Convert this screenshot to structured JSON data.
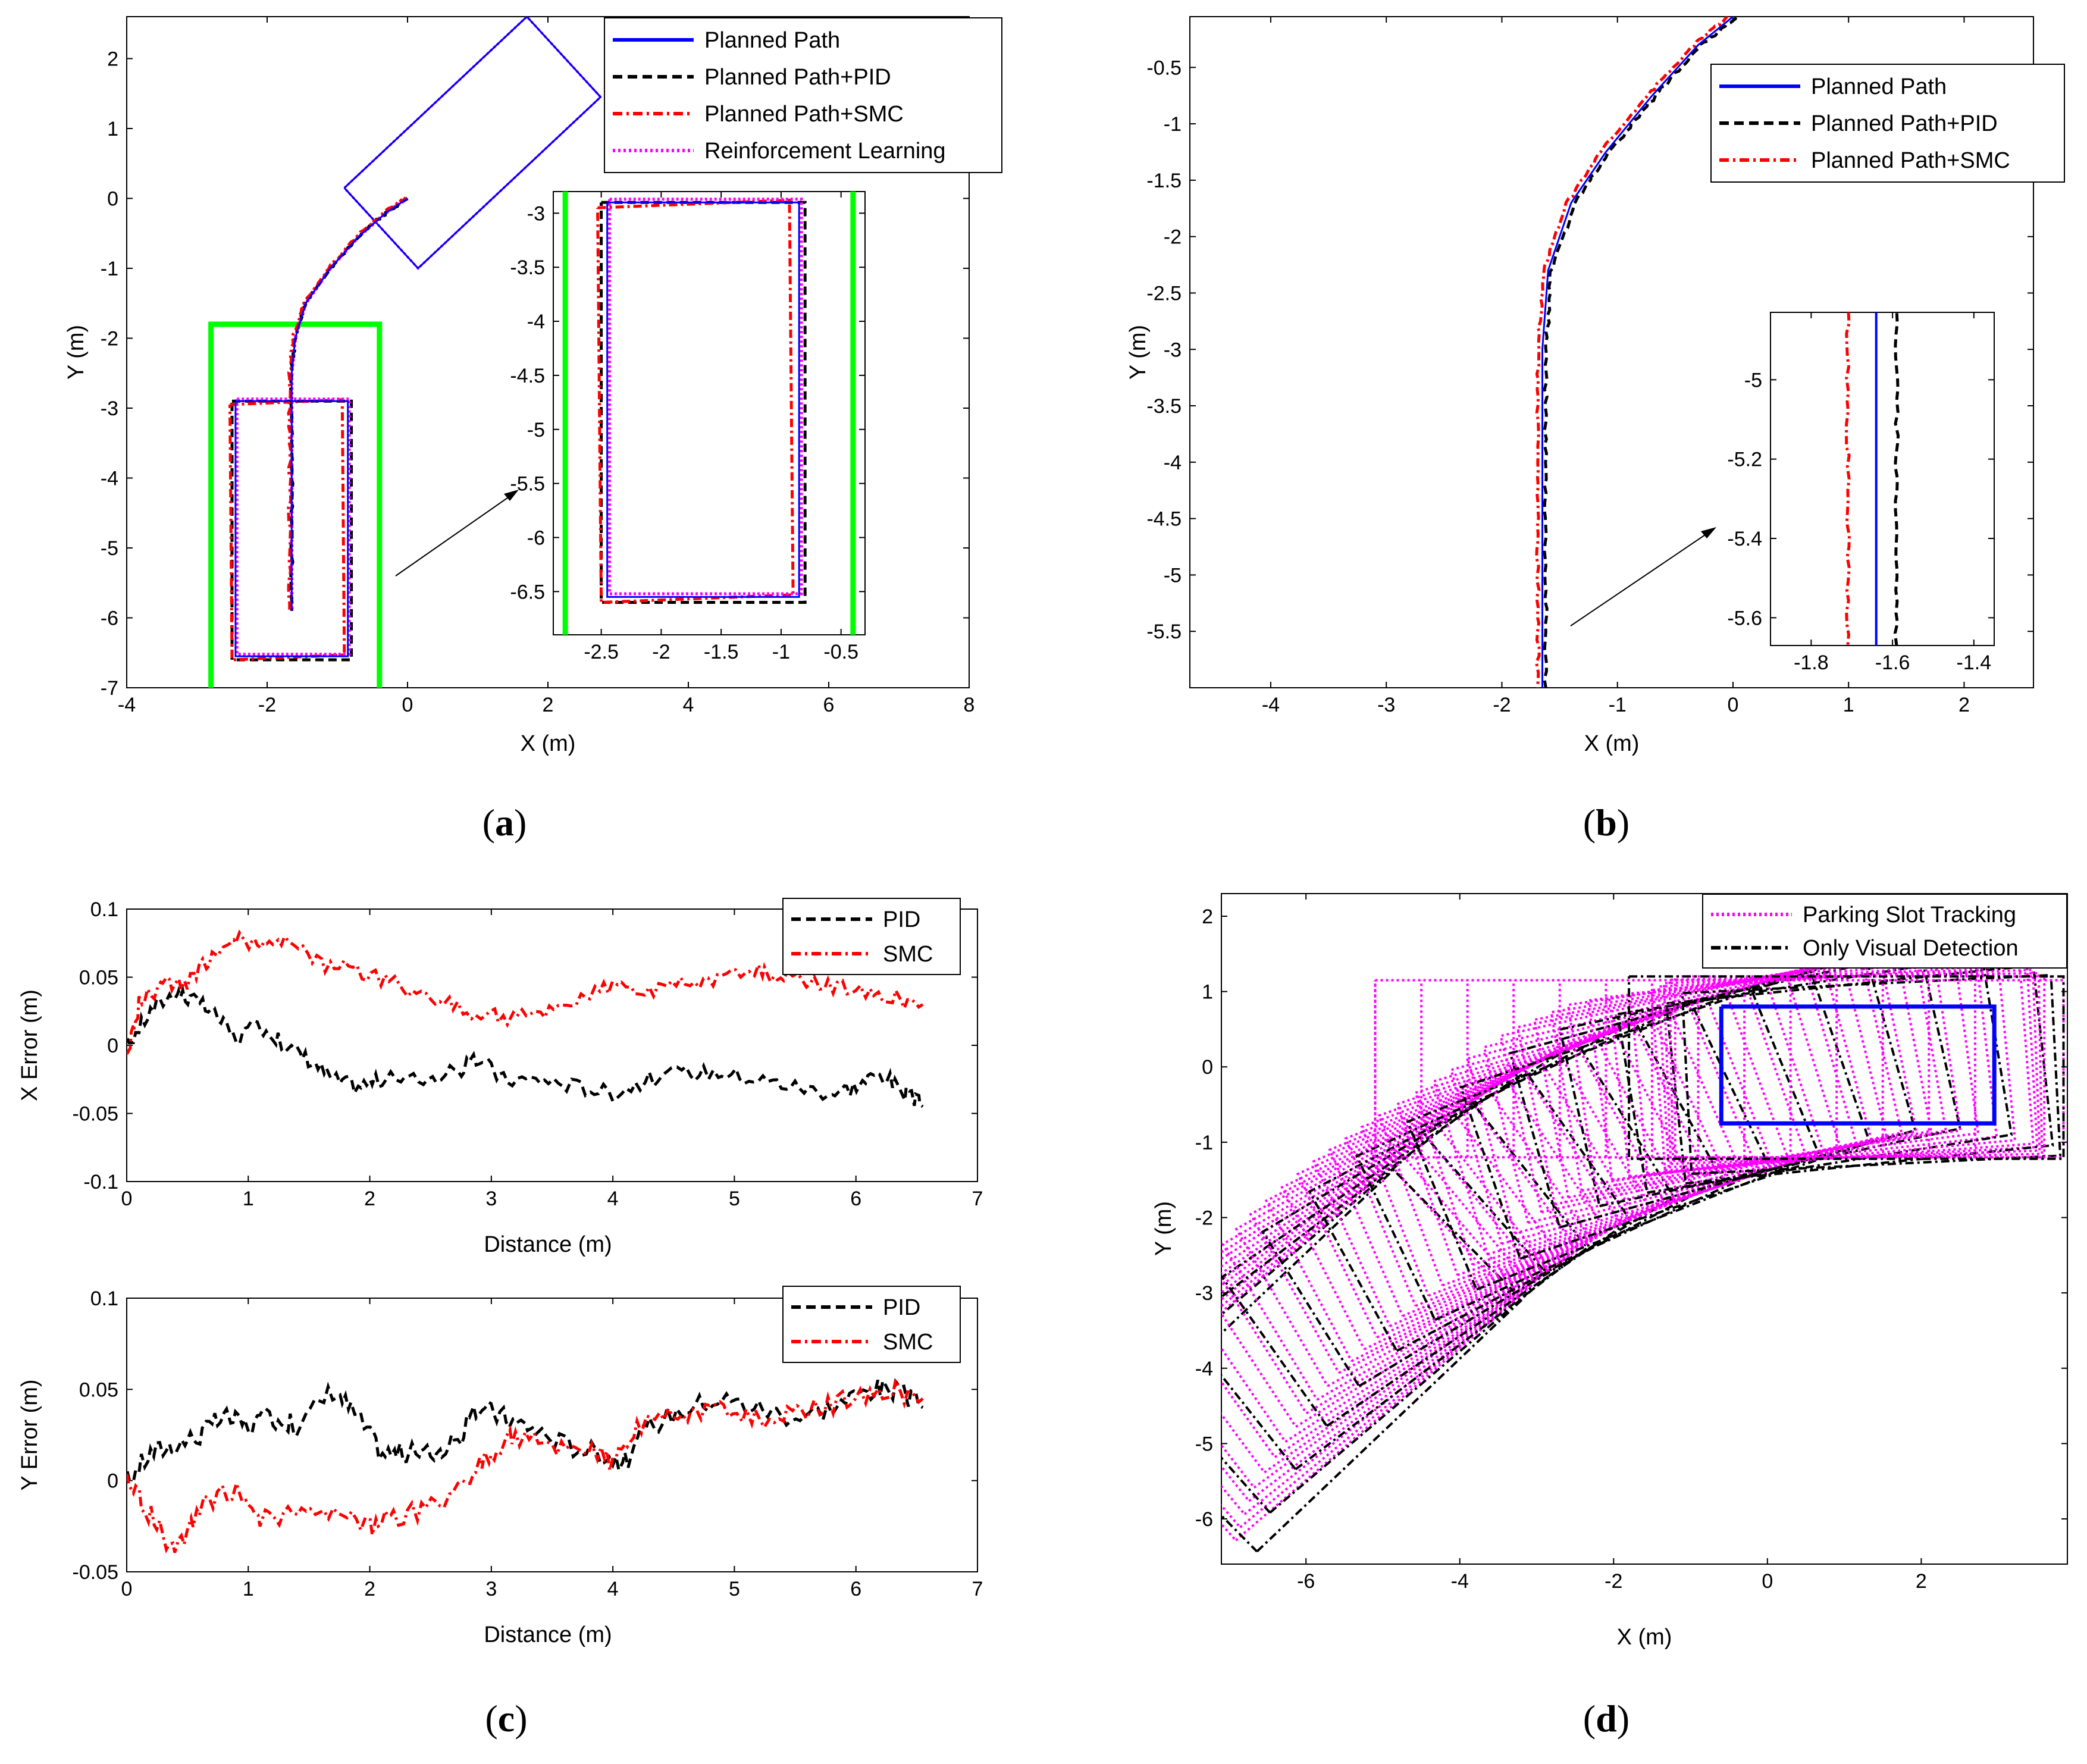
{
  "captions": {
    "a": "a",
    "b": "b",
    "c": "c",
    "d": "d"
  },
  "colors": {
    "blue": "#0000ff",
    "black": "#000000",
    "red": "#ff0000",
    "magenta": "#ff00ff",
    "green": "#00ff00"
  },
  "chart_data": [
    {
      "id": "a",
      "type": "line",
      "xlabel": "X (m)",
      "ylabel": "Y (m)",
      "xlim": [
        -4,
        8
      ],
      "ylim": [
        -7,
        2.6
      ],
      "xticks": [
        -4,
        -2,
        0,
        2,
        4,
        6,
        8
      ],
      "yticks": [
        -7,
        -6,
        -5,
        -4,
        -3,
        -2,
        -1,
        0,
        1,
        2
      ],
      "legend_position": "top-right",
      "series": [
        {
          "name": "Planned Path",
          "color": "#0000ff",
          "style": "solid"
        },
        {
          "name": "Planned Path+PID",
          "color": "#000000",
          "style": "dashed"
        },
        {
          "name": "Planned Path+SMC",
          "color": "#ff0000",
          "style": "dashdot"
        },
        {
          "name": "Reinforcement Learning",
          "color": "#ff00ff",
          "style": "dotted"
        }
      ],
      "path": [
        [
          0,
          0
        ],
        [
          -0.3,
          -0.2
        ],
        [
          -0.7,
          -0.55
        ],
        [
          -1.1,
          -1.0
        ],
        [
          -1.45,
          -1.5
        ],
        [
          -1.6,
          -2.0
        ],
        [
          -1.65,
          -2.5
        ],
        [
          -1.65,
          -3.5
        ],
        [
          -1.65,
          -4.5
        ],
        [
          -1.65,
          -5.9
        ]
      ],
      "start_box": [
        [
          -0.9,
          0.15
        ],
        [
          1.7,
          2.6
        ],
        [
          2.75,
          1.45
        ],
        [
          0.15,
          -1.0
        ]
      ],
      "final_box": [
        [
          -2.45,
          -2.9
        ],
        [
          -0.85,
          -2.9
        ],
        [
          -0.85,
          -6.55
        ],
        [
          -2.45,
          -6.55
        ]
      ],
      "slot_lines": {
        "left_x": -2.8,
        "right_x": -0.4,
        "top_y": -1.8,
        "bottom_y": -7
      },
      "inset": {
        "xlim": [
          -2.9,
          -0.3
        ],
        "ylim": [
          -6.9,
          -2.8
        ],
        "xticks": [
          -2.5,
          -2,
          -1.5,
          -1,
          -0.5
        ],
        "yticks": [
          -3,
          -3.5,
          -4,
          -4.5,
          -5,
          -5.5,
          -6,
          -6.5
        ],
        "slot_x": [
          -2.8,
          -0.4
        ]
      }
    },
    {
      "id": "b",
      "type": "line",
      "xlabel": "X (m)",
      "ylabel": "Y (m)",
      "xlim": [
        -4.7,
        2.6
      ],
      "ylim": [
        -6,
        -0.05
      ],
      "xticks": [
        -4,
        -3,
        -2,
        -1,
        0,
        1,
        2
      ],
      "yticks": [
        -0.5,
        -1,
        -1.5,
        -2,
        -2.5,
        -3,
        -3.5,
        -4,
        -4.5,
        -5,
        -5.5
      ],
      "legend_position": "top-right",
      "series": [
        {
          "name": "Planned Path",
          "color": "#0000ff",
          "style": "solid"
        },
        {
          "name": "Planned Path+PID",
          "color": "#000000",
          "style": "dashed"
        },
        {
          "name": "Planned Path+SMC",
          "color": "#ff0000",
          "style": "dashdot"
        }
      ],
      "path": [
        [
          0,
          -0.05
        ],
        [
          -0.3,
          -0.3
        ],
        [
          -0.7,
          -0.75
        ],
        [
          -1.1,
          -1.25
        ],
        [
          -1.4,
          -1.7
        ],
        [
          -1.6,
          -2.3
        ],
        [
          -1.65,
          -3.0
        ],
        [
          -1.65,
          -4.0
        ],
        [
          -1.65,
          -5.0
        ],
        [
          -1.65,
          -6.0
        ]
      ],
      "inset": {
        "xlim": [
          -1.9,
          -1.35
        ],
        "ylim": [
          -5.67,
          -4.83
        ],
        "xticks": [
          -1.8,
          -1.6,
          -1.4
        ],
        "yticks": [
          -5,
          -5.2,
          -5.4,
          -5.6
        ]
      }
    },
    {
      "id": "c1",
      "type": "line",
      "xlabel": "Distance (m)",
      "ylabel": "X Error (m)",
      "xlim": [
        0,
        7
      ],
      "ylim": [
        -0.1,
        0.1
      ],
      "xticks": [
        0,
        1,
        2,
        3,
        4,
        5,
        6,
        7
      ],
      "yticks": [
        -0.1,
        -0.05,
        0,
        0.05,
        0.1
      ],
      "legend_position": "top-right",
      "series": [
        {
          "name": "PID",
          "color": "#000000",
          "style": "dashed",
          "x": [
            0,
            0.2,
            0.4,
            0.5,
            0.7,
            0.9,
            1.1,
            1.3,
            1.5,
            1.7,
            1.9,
            2.1,
            2.4,
            2.7,
            2.9,
            3.1,
            3.4,
            3.7,
            4.0,
            4.3,
            4.6,
            4.9,
            5.2,
            5.5,
            5.8,
            6.0,
            6.2,
            6.4,
            6.55
          ],
          "y": [
            0.0,
            0.025,
            0.04,
            0.035,
            0.025,
            0.005,
            0.015,
            0.0,
            -0.01,
            -0.025,
            -0.03,
            -0.025,
            -0.025,
            -0.02,
            -0.01,
            -0.025,
            -0.025,
            -0.03,
            -0.035,
            -0.025,
            -0.02,
            -0.02,
            -0.025,
            -0.03,
            -0.035,
            -0.03,
            -0.02,
            -0.035,
            -0.045
          ]
        },
        {
          "name": "SMC",
          "color": "#ff0000",
          "style": "dashdot",
          "x": [
            0,
            0.1,
            0.3,
            0.5,
            0.7,
            0.9,
            1.1,
            1.3,
            1.6,
            1.9,
            2.2,
            2.5,
            2.8,
            3.1,
            3.4,
            3.7,
            4.0,
            4.3,
            4.6,
            4.9,
            5.2,
            5.4,
            5.7,
            6.0,
            6.3,
            6.55
          ],
          "y": [
            -0.01,
            0.03,
            0.045,
            0.045,
            0.065,
            0.08,
            0.07,
            0.075,
            0.06,
            0.055,
            0.045,
            0.035,
            0.025,
            0.02,
            0.025,
            0.035,
            0.045,
            0.04,
            0.045,
            0.05,
            0.055,
            0.05,
            0.045,
            0.04,
            0.035,
            0.03
          ]
        }
      ]
    },
    {
      "id": "c2",
      "type": "line",
      "xlabel": "Distance (m)",
      "ylabel": "Y Error (m)",
      "xlim": [
        0,
        7
      ],
      "ylim": [
        -0.05,
        0.1
      ],
      "xticks": [
        0,
        1,
        2,
        3,
        4,
        5,
        6,
        7
      ],
      "yticks": [
        -0.05,
        0,
        0.05,
        0.1
      ],
      "legend_position": "top-right",
      "series": [
        {
          "name": "PID",
          "color": "#000000",
          "style": "dashed",
          "x": [
            0,
            0.2,
            0.4,
            0.6,
            0.8,
            1.0,
            1.2,
            1.4,
            1.7,
            1.9,
            2.1,
            2.3,
            2.5,
            2.7,
            2.9,
            3.1,
            3.3,
            3.6,
            3.9,
            4.1,
            4.3,
            4.6,
            4.9,
            5.2,
            5.5,
            5.8,
            6.1,
            6.3,
            6.55
          ],
          "y": [
            0.0,
            0.015,
            0.02,
            0.025,
            0.035,
            0.03,
            0.035,
            0.03,
            0.05,
            0.035,
            0.015,
            0.015,
            0.015,
            0.02,
            0.04,
            0.035,
            0.03,
            0.02,
            0.015,
            0.01,
            0.03,
            0.04,
            0.045,
            0.04,
            0.035,
            0.04,
            0.05,
            0.05,
            0.04
          ]
        },
        {
          "name": "SMC",
          "color": "#ff0000",
          "style": "dashdot",
          "x": [
            0,
            0.2,
            0.4,
            0.6,
            0.9,
            1.1,
            1.4,
            1.7,
            2.0,
            2.2,
            2.5,
            2.8,
            3.0,
            3.2,
            3.5,
            3.8,
            4.0,
            4.2,
            4.5,
            4.8,
            5.1,
            5.4,
            5.7,
            6.0,
            6.3,
            6.55
          ],
          "y": [
            0.0,
            -0.02,
            -0.04,
            -0.015,
            -0.005,
            -0.02,
            -0.02,
            -0.02,
            -0.025,
            -0.02,
            -0.015,
            0.0,
            0.015,
            0.025,
            0.02,
            0.02,
            0.01,
            0.03,
            0.035,
            0.04,
            0.035,
            0.035,
            0.04,
            0.045,
            0.05,
            0.045
          ]
        }
      ]
    },
    {
      "id": "d",
      "type": "line",
      "xlabel": "X (m)",
      "ylabel": "Y (m)",
      "xlim": [
        -7.1,
        3.9
      ],
      "ylim": [
        -6.6,
        2.3
      ],
      "xticks": [
        -6,
        -4,
        -2,
        0,
        2
      ],
      "yticks": [
        2,
        1,
        0,
        -1,
        -2,
        -3,
        -4,
        -5,
        -6
      ],
      "legend_position": "top-right",
      "series": [
        {
          "name": "Parking Slot Tracking",
          "color": "#ff00ff",
          "style": "dotted"
        },
        {
          "name": "Only Visual Detection",
          "color": "#000000",
          "style": "dashdot"
        }
      ],
      "target_box": [
        [
          -0.6,
          0.8
        ],
        [
          2.95,
          0.8
        ],
        [
          2.95,
          -0.75
        ],
        [
          -0.6,
          -0.75
        ]
      ]
    }
  ]
}
